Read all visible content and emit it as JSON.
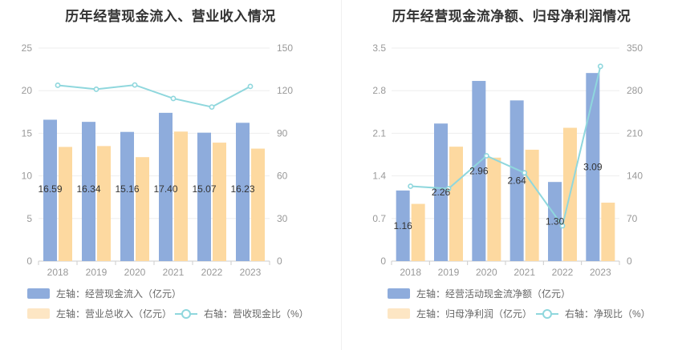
{
  "chart_data": [
    {
      "type": "bar+line",
      "title": "历年经营现金流入、营业收入情况",
      "categories": [
        "2018",
        "2019",
        "2020",
        "2021",
        "2022",
        "2023"
      ],
      "left_axis": {
        "min": 0,
        "max": 25,
        "ticks": [
          "0",
          "5",
          "10",
          "15",
          "20",
          "25"
        ]
      },
      "right_axis": {
        "min": 0,
        "max": 150,
        "ticks": [
          "0",
          "30",
          "60",
          "90",
          "120",
          "150"
        ]
      },
      "series": [
        {
          "name": "左轴：经营现金流入（亿元）",
          "kind": "bar",
          "axis": "left",
          "color": "#8eacdc",
          "values": [
            16.59,
            16.34,
            15.16,
            17.4,
            15.07,
            16.23
          ],
          "labels": [
            "16.59",
            "16.34",
            "15.16",
            "17.40",
            "15.07",
            "16.23"
          ]
        },
        {
          "name": "左轴：营业总收入（亿元）",
          "kind": "bar",
          "axis": "left",
          "color": "#fdd9a0",
          "values": [
            13.4,
            13.5,
            12.2,
            15.2,
            13.9,
            13.2
          ]
        },
        {
          "name": "右轴：营收现金比（%）",
          "kind": "line",
          "axis": "right",
          "color": "#8fd7dd",
          "values": [
            123.8,
            121.0,
            124.0,
            114.5,
            108.5,
            123.0
          ]
        }
      ]
    },
    {
      "type": "bar+line",
      "title": "历年经营现金流净额、归母净利润情况",
      "categories": [
        "2018",
        "2019",
        "2020",
        "2021",
        "2022",
        "2023"
      ],
      "left_axis": {
        "min": 0,
        "max": 3.5,
        "ticks": [
          "0",
          "0.7",
          "1.4",
          "2.1",
          "2.8",
          "3.5"
        ]
      },
      "right_axis": {
        "min": 0,
        "max": 350,
        "ticks": [
          "0",
          "70",
          "140",
          "210",
          "280",
          "350"
        ]
      },
      "series": [
        {
          "name": "左轴：经营活动现金流净额（亿元）",
          "kind": "bar",
          "axis": "left",
          "color": "#8eacdc",
          "values": [
            1.16,
            2.26,
            2.96,
            2.64,
            1.3,
            3.09
          ],
          "labels": [
            "1.16",
            "2.26",
            "2.96",
            "2.64",
            "1.30",
            "3.09"
          ]
        },
        {
          "name": "左轴：归母净利润（亿元）",
          "kind": "bar",
          "axis": "left",
          "color": "#fdd9a0",
          "values": [
            0.94,
            1.88,
            1.7,
            1.83,
            2.19,
            0.96
          ]
        },
        {
          "name": "右轴：净现比（%）",
          "kind": "line",
          "axis": "right",
          "color": "#8fd7dd",
          "values": [
            123,
            119,
            173,
            145,
            58,
            320
          ]
        }
      ]
    }
  ]
}
